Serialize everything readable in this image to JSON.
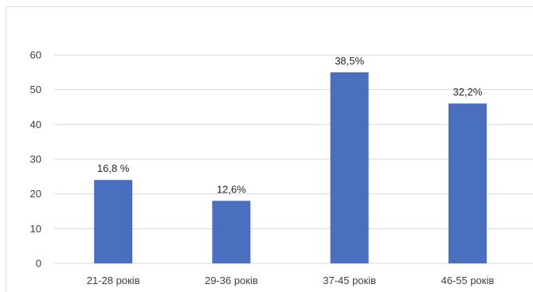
{
  "chart_data": {
    "type": "bar",
    "categories": [
      "21-28 років",
      "29-36 років",
      "37-45 років",
      "46-55 років"
    ],
    "values": [
      24,
      18,
      55,
      46
    ],
    "data_labels": [
      "16,8 %",
      "12,6%",
      "38,5%",
      "32,2%"
    ],
    "title": "",
    "xlabel": "",
    "ylabel": "",
    "ylim": [
      0,
      60
    ],
    "yticks": [
      "0",
      "10",
      "20",
      "30",
      "40",
      "50",
      "60"
    ],
    "grid": true,
    "legend": "none",
    "colors": {
      "bar": "#4A6FBE",
      "grid": "#d9d9d9"
    }
  }
}
